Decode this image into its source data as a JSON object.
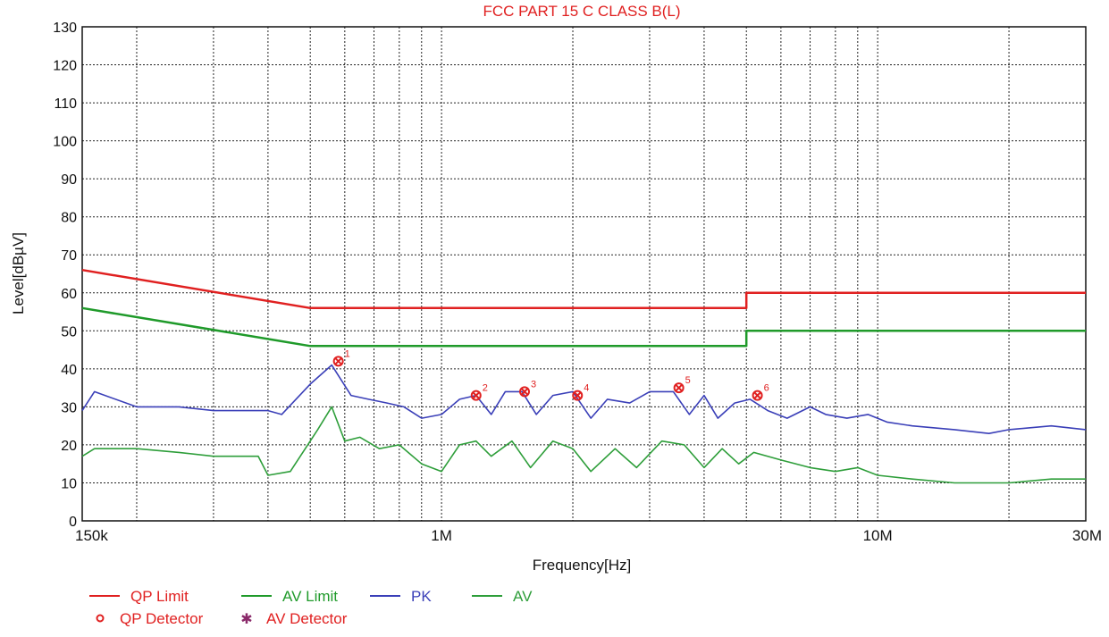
{
  "chart_data": {
    "type": "line",
    "title": "FCC PART 15 C CLASS B(L)",
    "xlabel": "Frequency[Hz]",
    "ylabel": "Level[dBµV]",
    "x_scale": "log",
    "xlim": [
      150000,
      30000000
    ],
    "ylim": [
      0,
      130
    ],
    "y_ticks": [
      0,
      10,
      20,
      30,
      40,
      50,
      60,
      70,
      80,
      90,
      100,
      110,
      120,
      130
    ],
    "x_tick_labels": [
      {
        "value": 150000,
        "label": "150k"
      },
      {
        "value": 1000000,
        "label": "1M"
      },
      {
        "value": 10000000,
        "label": "10M"
      },
      {
        "value": 30000000,
        "label": "30M"
      }
    ],
    "grid": true,
    "legend_position": "bottom-left",
    "colors": {
      "qp_limit": "#e02020",
      "av_limit": "#1f9a2a",
      "pk": "#3a3fb8",
      "av": "#2e9e3a",
      "marker": "#e02020",
      "title": "#e02020"
    },
    "series": [
      {
        "name": "QP Limit",
        "color": "#e02020",
        "x": [
          150000,
          500000,
          500000,
          5000000,
          5000000,
          30000000
        ],
        "y": [
          66,
          56,
          56,
          56,
          60,
          60
        ]
      },
      {
        "name": "AV Limit",
        "color": "#1f9a2a",
        "x": [
          150000,
          500000,
          500000,
          5000000,
          5000000,
          30000000
        ],
        "y": [
          56,
          46,
          46,
          46,
          50,
          50
        ]
      },
      {
        "name": "PK",
        "color": "#3a3fb8",
        "x": [
          150000,
          160000,
          200000,
          250000,
          300000,
          400000,
          430000,
          500000,
          560000,
          620000,
          680000,
          750000,
          820000,
          900000,
          1000000,
          1100000,
          1200000,
          1300000,
          1400000,
          1530000,
          1650000,
          1800000,
          2000000,
          2200000,
          2400000,
          2700000,
          3000000,
          3400000,
          3700000,
          4000000,
          4300000,
          4700000,
          5100000,
          5600000,
          6200000,
          7000000,
          7600000,
          8500000,
          9500000,
          10500000,
          12000000,
          15000000,
          18000000,
          20000000,
          25000000,
          30000000
        ],
        "y": [
          29,
          34,
          30,
          30,
          29,
          29,
          28,
          36,
          41,
          33,
          32,
          31,
          30,
          27,
          28,
          32,
          33,
          28,
          34,
          34,
          28,
          33,
          34,
          27,
          32,
          31,
          34,
          34,
          28,
          33,
          27,
          31,
          32,
          29,
          27,
          30,
          28,
          27,
          28,
          26,
          25,
          24,
          23,
          24,
          25,
          24
        ]
      },
      {
        "name": "AV",
        "color": "#2e9e3a",
        "x": [
          150000,
          160000,
          200000,
          250000,
          300000,
          380000,
          400000,
          450000,
          520000,
          560000,
          600000,
          650000,
          720000,
          800000,
          900000,
          1000000,
          1100000,
          1200000,
          1300000,
          1450000,
          1600000,
          1800000,
          2000000,
          2200000,
          2500000,
          2800000,
          3200000,
          3600000,
          4000000,
          4400000,
          4800000,
          5200000,
          6000000,
          7000000,
          8000000,
          9000000,
          10000000,
          12000000,
          15000000,
          18000000,
          20000000,
          25000000,
          30000000
        ],
        "y": [
          17,
          19,
          19,
          18,
          17,
          17,
          12,
          13,
          24,
          30,
          21,
          22,
          19,
          20,
          15,
          13,
          20,
          21,
          17,
          21,
          14,
          21,
          19,
          13,
          19,
          14,
          21,
          20,
          14,
          19,
          15,
          18,
          16,
          14,
          13,
          14,
          12,
          11,
          10,
          10,
          10,
          11,
          11
        ]
      }
    ],
    "markers": [
      {
        "label": "1",
        "x": 580000,
        "y": 42
      },
      {
        "label": "2",
        "x": 1200000,
        "y": 33
      },
      {
        "label": "3",
        "x": 1550000,
        "y": 34
      },
      {
        "label": "4",
        "x": 2050000,
        "y": 33
      },
      {
        "label": "5",
        "x": 3500000,
        "y": 35
      },
      {
        "label": "6",
        "x": 5300000,
        "y": 33
      }
    ]
  },
  "legend": {
    "items": [
      {
        "label": "QP Limit",
        "color": "#e02020",
        "kind": "line"
      },
      {
        "label": "AV Limit",
        "color": "#1f9a2a",
        "kind": "line"
      },
      {
        "label": "PK",
        "color": "#3a3fb8",
        "kind": "line"
      },
      {
        "label": "AV",
        "color": "#2e9e3a",
        "kind": "line"
      }
    ],
    "detectors": [
      {
        "label": "QP Detector",
        "color": "#e02020",
        "kind": "circle"
      },
      {
        "label": "AV Detector",
        "color": "#8a2a6a",
        "kind": "star"
      }
    ]
  }
}
